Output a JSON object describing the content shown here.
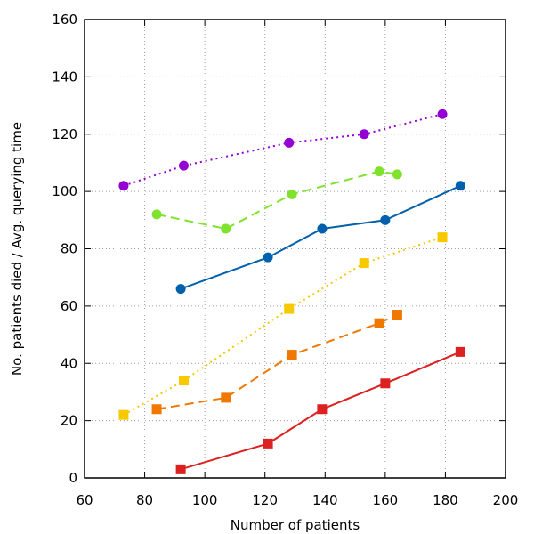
{
  "chart_data": {
    "type": "line",
    "title": "",
    "xlabel": "Number of patients",
    "ylabel": "No. patients died / Avg. querying time",
    "xlim": [
      60,
      200
    ],
    "ylim": [
      0,
      160
    ],
    "xticks": [
      60,
      80,
      100,
      120,
      140,
      160,
      180,
      200
    ],
    "yticks": [
      0,
      20,
      40,
      60,
      80,
      100,
      120,
      140,
      160
    ],
    "grid": true,
    "series": [
      {
        "name": "purple circles (dotted)",
        "color": "#9400D3",
        "marker": "circle",
        "dash": "2,4",
        "x": [
          73,
          93,
          128,
          153,
          179
        ],
        "y": [
          102,
          109,
          117,
          120,
          127
        ]
      },
      {
        "name": "green circles (dashed)",
        "color": "#7FE32E",
        "marker": "circle",
        "dash": "10,6",
        "x": [
          84,
          107,
          129,
          158,
          164
        ],
        "y": [
          92,
          87,
          99,
          107,
          106
        ]
      },
      {
        "name": "blue circles (solid)",
        "color": "#0060AD",
        "marker": "circle",
        "dash": "",
        "x": [
          92,
          121,
          139,
          160,
          185
        ],
        "y": [
          66,
          77,
          87,
          90,
          102
        ]
      },
      {
        "name": "yellow squares (dotted)",
        "color": "#F6C900",
        "marker": "square",
        "dash": "2,4",
        "x": [
          73,
          93,
          128,
          153,
          179
        ],
        "y": [
          22,
          34,
          59,
          75,
          84
        ]
      },
      {
        "name": "orange squares (dashed)",
        "color": "#F07800",
        "marker": "square",
        "dash": "10,6",
        "x": [
          84,
          107,
          129,
          158,
          164
        ],
        "y": [
          24,
          28,
          43,
          54,
          57
        ]
      },
      {
        "name": "red squares (solid)",
        "color": "#DD2020",
        "marker": "square",
        "dash": "",
        "x": [
          92,
          121,
          139,
          160,
          185
        ],
        "y": [
          3,
          12,
          24,
          33,
          44
        ]
      }
    ]
  }
}
